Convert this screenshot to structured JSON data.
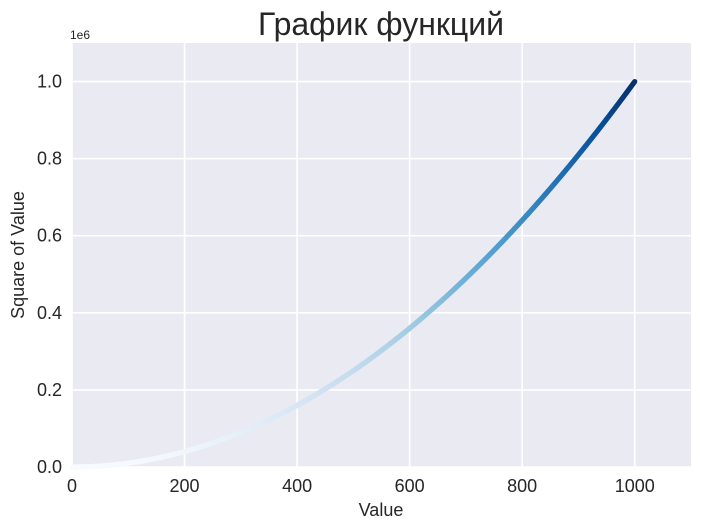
{
  "chart_data": {
    "type": "scatter",
    "title": "График функций",
    "xlabel": "Value",
    "ylabel": "Square of Value",
    "xlim": [
      0,
      1100
    ],
    "ylim": [
      0,
      1100000
    ],
    "x_ticks": [
      0,
      200,
      400,
      600,
      800,
      1000
    ],
    "x_tick_labels": [
      "0",
      "200",
      "400",
      "600",
      "800",
      "1000"
    ],
    "y_ticks": [
      0,
      200000,
      400000,
      600000,
      800000,
      1000000
    ],
    "y_tick_labels": [
      "0.0",
      "0.2",
      "0.4",
      "0.6",
      "0.8",
      "1.0"
    ],
    "y_offset_label": "1e6",
    "grid": true,
    "colormap": "Blues",
    "background": "#eaeaf2",
    "series": [
      {
        "x_start": 1,
        "x_end": 1000,
        "function": "y = x^2",
        "x": [
          0,
          100,
          200,
          300,
          400,
          500,
          600,
          700,
          800,
          900,
          1000
        ],
        "y": [
          0,
          10000,
          40000,
          90000,
          160000,
          250000,
          360000,
          490000,
          640000,
          810000,
          1000000
        ]
      }
    ]
  }
}
